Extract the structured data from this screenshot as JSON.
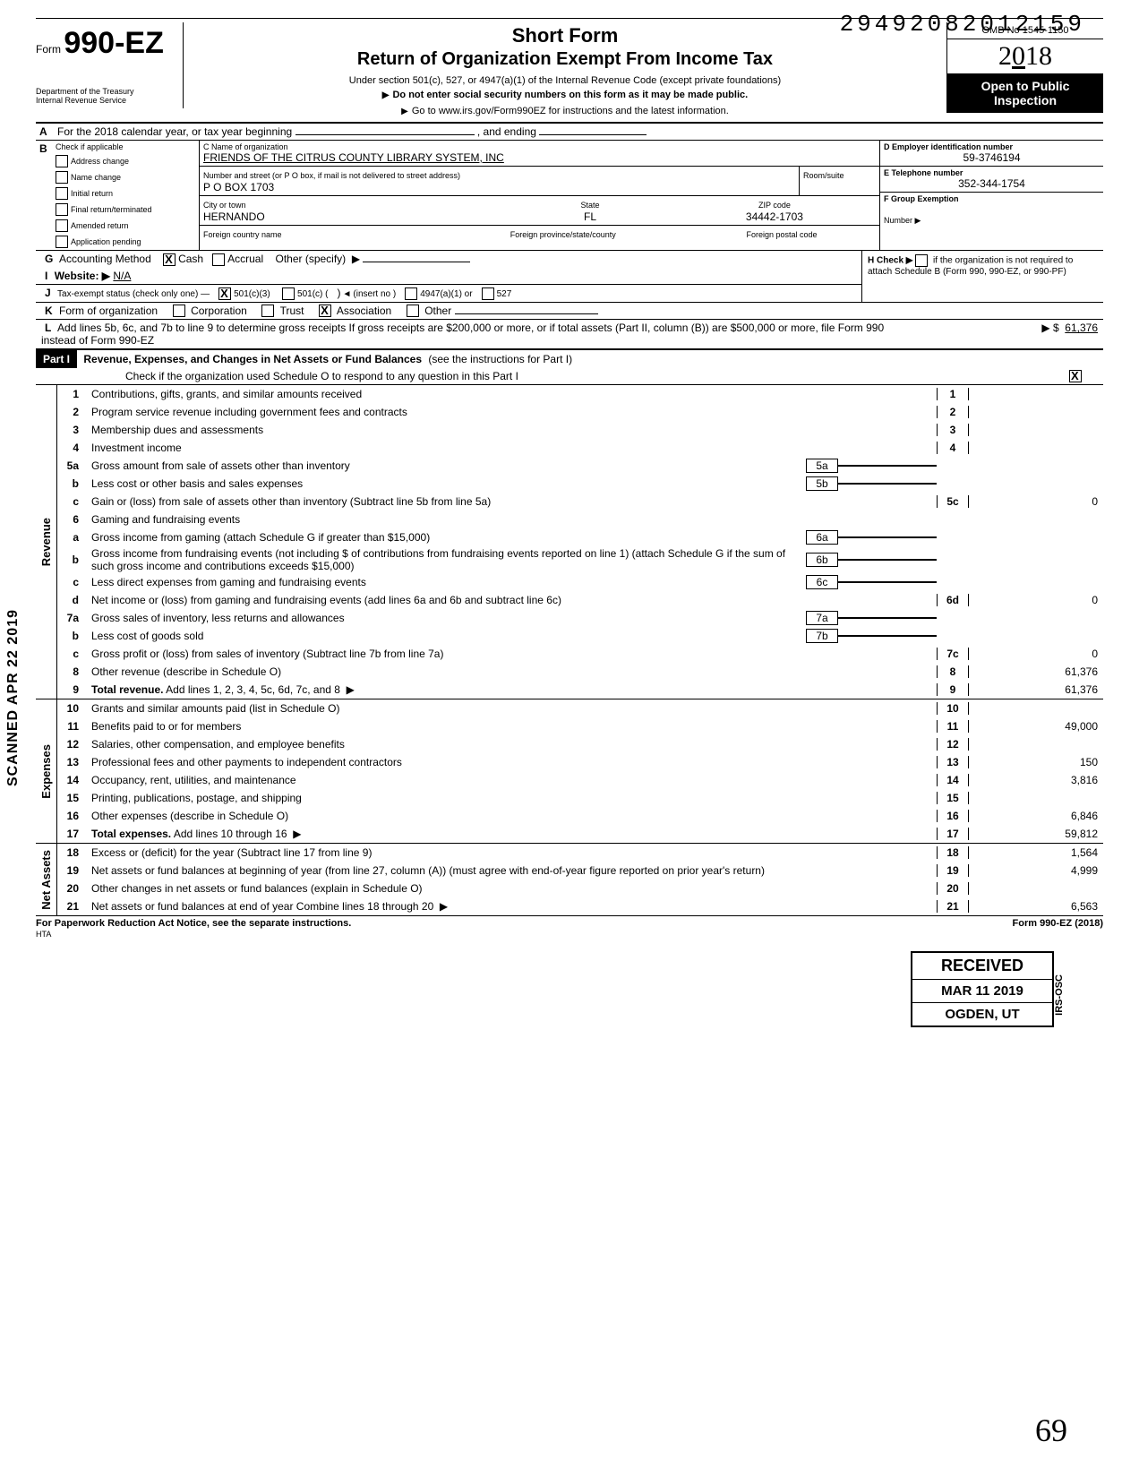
{
  "dln": "29492082012159",
  "omb": "OMB No 1545-1150",
  "form_prefix": "Form",
  "form_number": "990-EZ",
  "year_display": "2018",
  "dept1": "Department of the Treasury",
  "dept2": "Internal Revenue Service",
  "short_form": "Short Form",
  "return_title": "Return of Organization Exempt From Income Tax",
  "under_section": "Under section 501(c), 527, or 4947(a)(1) of the Internal Revenue Code (except private foundations)",
  "do_not_enter": "Do not enter social security numbers on this form as it may be made public.",
  "goto": "Go to www.irs.gov/Form990EZ for instructions and the latest information.",
  "open_public1": "Open to Public",
  "open_public2": "Inspection",
  "line_a": "For the 2018 calendar year, or tax year beginning",
  "line_a_end": ", and ending",
  "b_header": "Check if applicable",
  "b_items": {
    "0": "Address change",
    "1": "Name change",
    "2": "Initial return",
    "3": "Final return/terminated",
    "4": "Amended return",
    "5": "Application pending"
  },
  "c_label": "C  Name of organization",
  "c_value": "FRIENDS OF THE CITRUS COUNTY LIBRARY SYSTEM, INC",
  "addr_label": "Number and street (or P O  box, if mail is not delivered to street address)",
  "room_label": "Room/suite",
  "addr_value": "P O BOX 1703",
  "city_label": "City or town",
  "state_label": "State",
  "zip_label": "ZIP code",
  "city_value": "HERNANDO",
  "state_value": "FL",
  "zip_value": "34442-1703",
  "foreign_country_label": "Foreign country name",
  "foreign_prov_label": "Foreign province/state/county",
  "foreign_postal_label": "Foreign postal code",
  "d_label": "D  Employer identification number",
  "d_value": "59-3746194",
  "e_label": "E  Telephone number",
  "e_value": "352-344-1754",
  "f_label": "F  Group Exemption",
  "f_label2": "Number ▶",
  "g_label": "Accounting Method",
  "g_cash": "Cash",
  "g_accrual": "Accrual",
  "g_other": "Other (specify)",
  "h_label": "H  Check ▶",
  "h_text": "if the organization is not required to attach Schedule B (Form 990, 990-EZ, or 990-PF)",
  "i_label": "Website: ▶",
  "i_value": "N/A",
  "j_label": "Tax-exempt status (check only one) —",
  "j_501c3": "501(c)(3)",
  "j_501c": "501(c) (",
  "j_insert": "(insert no )",
  "j_4947": "4947(a)(1) or",
  "j_527": "527",
  "k_label": "Form of organization",
  "k_corp": "Corporation",
  "k_trust": "Trust",
  "k_assoc": "Association",
  "k_other": "Other",
  "l_text": "Add lines 5b, 6c, and 7b to line 9 to determine gross receipts  If gross receipts are $200,000 or more, or if total assets (Part II, column (B)) are $500,000 or more, file Form 990 instead of Form 990-EZ",
  "l_amount": "61,376",
  "part1_label": "Part I",
  "part1_title": "Revenue, Expenses, and Changes in Net Assets or Fund Balances",
  "part1_see": "(see the instructions for Part I)",
  "part1_check": "Check if the organization used Schedule O to respond to any question in this Part I",
  "vtabs": {
    "rev": "Revenue",
    "exp": "Expenses",
    "na": "Net Assets"
  },
  "lines": {
    "1": {
      "n": "1",
      "d": "Contributions, gifts, grants, and similar amounts received",
      "r": "1",
      "v": ""
    },
    "2": {
      "n": "2",
      "d": "Program service revenue including government fees and contracts",
      "r": "2",
      "v": ""
    },
    "3": {
      "n": "3",
      "d": "Membership dues and assessments",
      "r": "3",
      "v": ""
    },
    "4": {
      "n": "4",
      "d": "Investment income",
      "r": "4",
      "v": ""
    },
    "5a": {
      "n": "5a",
      "d": "Gross amount from sale of assets other than inventory",
      "m": "5a"
    },
    "5b": {
      "n": "b",
      "d": "Less  cost or other basis and sales expenses",
      "m": "5b"
    },
    "5c": {
      "n": "c",
      "d": "Gain or (loss) from sale of assets other than inventory (Subtract line 5b from line 5a)",
      "r": "5c",
      "v": "0"
    },
    "6": {
      "n": "6",
      "d": "Gaming and fundraising events"
    },
    "6a": {
      "n": "a",
      "d": "Gross income from gaming (attach Schedule G if greater than $15,000)",
      "m": "6a"
    },
    "6b": {
      "n": "b",
      "d": "Gross income from fundraising events (not including     $                      of contributions from fundraising events reported on line 1) (attach Schedule G if the sum of such gross income and contributions exceeds $15,000)",
      "m": "6b"
    },
    "6c": {
      "n": "c",
      "d": "Less  direct expenses from gaming and fundraising events",
      "m": "6c"
    },
    "6d": {
      "n": "d",
      "d": "Net income or (loss) from gaming and fundraising events (add lines 6a and 6b and subtract line 6c)",
      "r": "6d",
      "v": "0"
    },
    "7a": {
      "n": "7a",
      "d": "Gross sales of inventory, less returns and allowances",
      "m": "7a"
    },
    "7b": {
      "n": "b",
      "d": "Less  cost of goods sold",
      "m": "7b"
    },
    "7c": {
      "n": "c",
      "d": "Gross profit or (loss) from sales of inventory (Subtract line 7b from line 7a)",
      "r": "7c",
      "v": "0"
    },
    "8": {
      "n": "8",
      "d": "Other revenue (describe in Schedule O)",
      "r": "8",
      "v": "61,376"
    },
    "9": {
      "n": "9",
      "d": "Total revenue. Add lines 1, 2, 3, 4, 5c, 6d, 7c, and 8",
      "r": "9",
      "v": "61,376",
      "bold": true,
      "arrow": true
    },
    "10": {
      "n": "10",
      "d": "Grants and similar amounts paid (list in Schedule O)",
      "r": "10",
      "v": ""
    },
    "11": {
      "n": "11",
      "d": "Benefits paid to or for members",
      "r": "11",
      "v": "49,000"
    },
    "12": {
      "n": "12",
      "d": "Salaries, other compensation, and employee benefits",
      "r": "12",
      "v": ""
    },
    "13": {
      "n": "13",
      "d": "Professional fees and other payments to independent contractors",
      "r": "13",
      "v": "150"
    },
    "14": {
      "n": "14",
      "d": "Occupancy, rent, utilities, and maintenance",
      "r": "14",
      "v": "3,816"
    },
    "15": {
      "n": "15",
      "d": "Printing, publications, postage, and shipping",
      "r": "15",
      "v": ""
    },
    "16": {
      "n": "16",
      "d": "Other expenses (describe in Schedule O)",
      "r": "16",
      "v": "6,846"
    },
    "17": {
      "n": "17",
      "d": "Total expenses. Add lines 10 through 16",
      "r": "17",
      "v": "59,812",
      "bold": true,
      "arrow": true
    },
    "18": {
      "n": "18",
      "d": "Excess or (deficit) for the year (Subtract line 17 from line 9)",
      "r": "18",
      "v": "1,564"
    },
    "19": {
      "n": "19",
      "d": "Net assets or fund balances at beginning of year (from line 27, column (A)) (must agree with end-of-year figure reported on prior year's return)",
      "r": "19",
      "v": "4,999"
    },
    "20": {
      "n": "20",
      "d": "Other changes in net assets or fund balances (explain in Schedule O)",
      "r": "20",
      "v": ""
    },
    "21": {
      "n": "21",
      "d": "Net assets or fund balances at end of year  Combine lines 18 through 20",
      "r": "21",
      "v": "6,563",
      "arrow": true
    }
  },
  "stamp": {
    "l1": "RECEIVED",
    "l2": "MAR 11 2019",
    "l3": "OGDEN, UT",
    "side": "IRS-OSC"
  },
  "scanned": "SCANNED APR 22 2019",
  "paperwork": "For Paperwork Reduction Act Notice, see the separate instructions.",
  "hta": "HTA",
  "form_foot": "Form 990-EZ (2018)",
  "dollar_prefix": "▶  $"
}
